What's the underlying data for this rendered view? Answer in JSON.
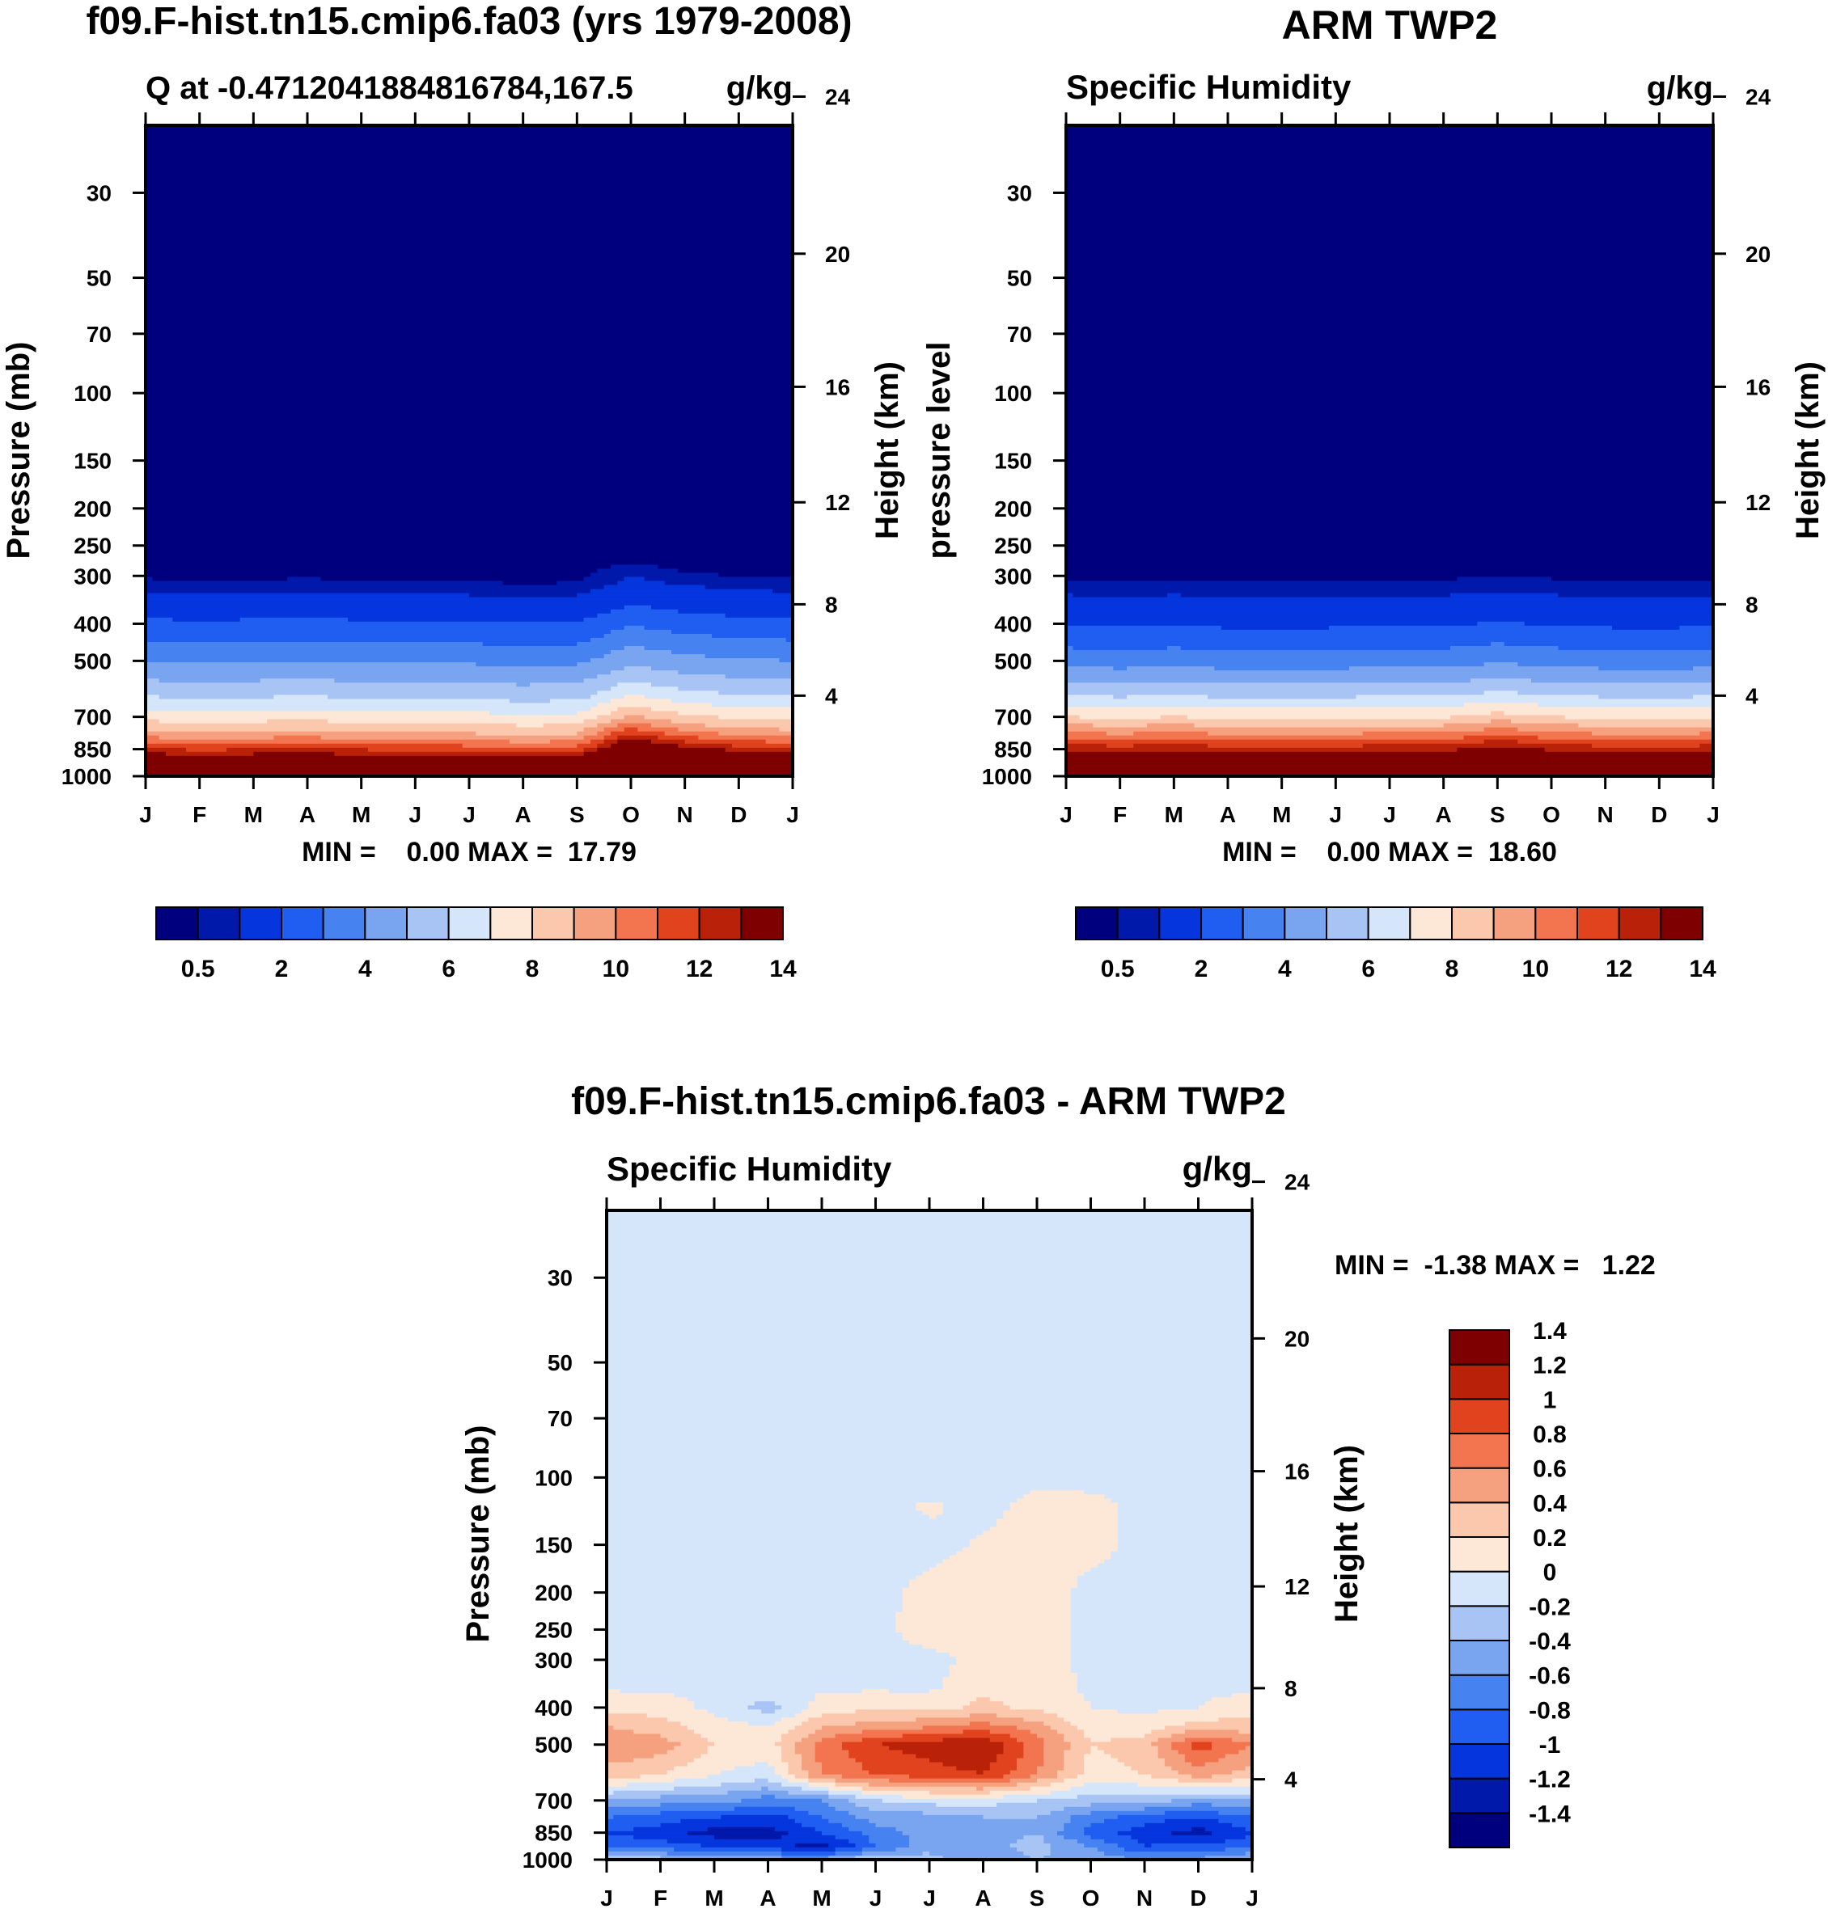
{
  "chart_data": [
    {
      "id": "model",
      "type": "heatmap",
      "title": "f09.F-hist.tn15.cmip6.fa03 (yrs 1979-2008)",
      "subtitle_left": "Q at -0.4712041884816784,167.5",
      "subtitle_right": "g/kg",
      "ylabel": "Pressure (mb)",
      "y2label": "Height (km)",
      "x_ticks": [
        "J",
        "F",
        "M",
        "A",
        "M",
        "J",
        "J",
        "A",
        "S",
        "O",
        "N",
        "D",
        "J"
      ],
      "y_ticks": [
        30,
        50,
        70,
        100,
        150,
        200,
        250,
        300,
        400,
        500,
        700,
        850,
        1000
      ],
      "y2_ticks": [
        24,
        20,
        16,
        12,
        8,
        4
      ],
      "ylim": [
        20,
        1000
      ],
      "minmax_label": "MIN =    0.00 MAX =  17.79",
      "min": 0.0,
      "max": 17.79,
      "profile_q": [
        [
          1000,
          17.5
        ],
        [
          925,
          15.2
        ],
        [
          850,
          12.2
        ],
        [
          775,
          9.4
        ],
        [
          700,
          7.6
        ],
        [
          600,
          5.6
        ],
        [
          500,
          4.0
        ],
        [
          400,
          2.2
        ],
        [
          300,
          0.4
        ],
        [
          250,
          0.15
        ],
        [
          100,
          0.0
        ],
        [
          20,
          0.0
        ]
      ],
      "monthly_level_shift": [
        0.0,
        0.06,
        0.02,
        0.0,
        0.04,
        0.05,
        0.08,
        0.12,
        0.1,
        -0.35,
        -0.15,
        -0.05,
        0.0
      ],
      "colorbar": {
        "colors": [
          "#00007f",
          "#0019aa",
          "#0535dd",
          "#1f5ef0",
          "#4682f0",
          "#78a4f0",
          "#a8c4f4",
          "#d6e6fa",
          "#fde8d8",
          "#fbc8ad",
          "#f5a07e",
          "#f27550",
          "#e0431e",
          "#b92208",
          "#7f0000"
        ],
        "levels": [
          0.5,
          1,
          2,
          3,
          4,
          5,
          6,
          7,
          8,
          9,
          10,
          11,
          12,
          13,
          14
        ],
        "labels": [
          "0.5",
          "2",
          "4",
          "6",
          "8",
          "10",
          "12",
          "14"
        ]
      }
    },
    {
      "id": "obs",
      "type": "heatmap",
      "title": "ARM TWP2",
      "subtitle_left": "Specific Humidity",
      "subtitle_right": "g/kg",
      "ylabel": "pressure level",
      "y2label": "Height (km)",
      "x_ticks": [
        "J",
        "F",
        "M",
        "A",
        "M",
        "J",
        "J",
        "A",
        "S",
        "O",
        "N",
        "D",
        "J"
      ],
      "y_ticks": [
        30,
        50,
        70,
        100,
        150,
        200,
        250,
        300,
        400,
        500,
        700,
        850,
        1000
      ],
      "y2_ticks": [
        24,
        20,
        16,
        12,
        8,
        4
      ],
      "ylim": [
        20,
        1000
      ],
      "minmax_label": "MIN =    0.00 MAX =  18.60",
      "min": 0.0,
      "max": 18.6,
      "profile_q": [
        [
          1000,
          18.2
        ],
        [
          925,
          15.6
        ],
        [
          850,
          12.8
        ],
        [
          775,
          10.2
        ],
        [
          700,
          8.0
        ],
        [
          600,
          5.6
        ],
        [
          500,
          3.6
        ],
        [
          400,
          1.9
        ],
        [
          300,
          0.4
        ],
        [
          250,
          0.15
        ],
        [
          100,
          0.0
        ],
        [
          20,
          0.0
        ]
      ],
      "monthly_level_shift": [
        0.0,
        0.04,
        0.0,
        0.05,
        0.06,
        0.04,
        0.02,
        0.02,
        -0.1,
        0.0,
        0.04,
        0.06,
        0.02
      ],
      "colorbar": {
        "colors": [
          "#00007f",
          "#0019aa",
          "#0535dd",
          "#1f5ef0",
          "#4682f0",
          "#78a4f0",
          "#a8c4f4",
          "#d6e6fa",
          "#fde8d8",
          "#fbc8ad",
          "#f5a07e",
          "#f27550",
          "#e0431e",
          "#b92208",
          "#7f0000"
        ],
        "levels": [
          0.5,
          1,
          2,
          3,
          4,
          5,
          6,
          7,
          8,
          9,
          10,
          11,
          12,
          13,
          14
        ],
        "labels": [
          "0.5",
          "2",
          "4",
          "6",
          "8",
          "10",
          "12",
          "14"
        ]
      }
    },
    {
      "id": "diff",
      "type": "heatmap",
      "title": "f09.F-hist.tn15.cmip6.fa03 - ARM TWP2",
      "subtitle_left": "Specific Humidity",
      "subtitle_right": "g/kg",
      "ylabel": "Pressure (mb)",
      "y2label": "Height (km)",
      "x_ticks": [
        "J",
        "F",
        "M",
        "A",
        "M",
        "J",
        "J",
        "A",
        "S",
        "O",
        "N",
        "D",
        "J"
      ],
      "y_ticks": [
        30,
        50,
        70,
        100,
        150,
        200,
        250,
        300,
        400,
        500,
        700,
        850,
        1000
      ],
      "y2_ticks": [
        24,
        20,
        16,
        12,
        8,
        4
      ],
      "ylim": [
        20,
        1000
      ],
      "minmax_label": "MIN =  -1.38 MAX =   1.22",
      "min": -1.38,
      "max": 1.22,
      "levels_p": [
        1000,
        925,
        850,
        775,
        700,
        600,
        500,
        450,
        400,
        350,
        300,
        250,
        200,
        150,
        120,
        100,
        20
      ],
      "grid_values": [
        [
          -0.3,
          -0.3,
          -0.4,
          -0.5,
          -0.5,
          -0.2,
          -0.3,
          -0.6,
          -0.4,
          -0.5,
          -0.6,
          -0.6,
          -0.3
        ],
        [
          -0.9,
          -0.9,
          -1.0,
          -1.1,
          -1.3,
          -0.8,
          -0.5,
          -0.5,
          -0.3,
          -0.6,
          -1.0,
          -0.9,
          -0.9
        ],
        [
          -1.0,
          -1.1,
          -1.3,
          -1.3,
          -1.0,
          -0.7,
          -0.5,
          -0.5,
          -0.4,
          -0.9,
          -1.1,
          -1.3,
          -1.0
        ],
        [
          -0.8,
          -0.9,
          -1.0,
          -1.1,
          -0.8,
          -0.5,
          -0.5,
          -0.4,
          -0.4,
          -0.7,
          -0.9,
          -1.0,
          -0.8
        ],
        [
          -0.4,
          -0.5,
          -0.5,
          -0.7,
          -0.6,
          -0.2,
          -0.1,
          -0.1,
          -0.2,
          -0.3,
          -0.3,
          -0.5,
          -0.4
        ],
        [
          0.3,
          0.2,
          0.0,
          -0.1,
          0.6,
          0.8,
          0.9,
          1.0,
          0.6,
          0.1,
          0.2,
          0.5,
          0.3
        ],
        [
          0.6,
          0.5,
          0.2,
          0.1,
          0.7,
          1.0,
          1.1,
          1.22,
          0.7,
          0.2,
          0.3,
          0.9,
          0.6
        ],
        [
          0.4,
          0.3,
          0.1,
          0.0,
          0.4,
          0.5,
          0.6,
          0.7,
          0.5,
          0.1,
          0.1,
          0.3,
          0.3
        ],
        [
          0.15,
          0.1,
          -0.05,
          -0.3,
          0.1,
          0.15,
          0.1,
          0.25,
          0.15,
          0.0,
          -0.05,
          0.0,
          0.1
        ],
        [
          -0.05,
          -0.05,
          -0.05,
          -0.05,
          -0.05,
          -0.05,
          -0.05,
          0.15,
          0.12,
          -0.05,
          -0.05,
          -0.05,
          -0.05
        ],
        [
          -0.05,
          -0.05,
          -0.05,
          -0.05,
          -0.05,
          -0.05,
          -0.05,
          0.05,
          0.1,
          -0.05,
          -0.05,
          -0.05,
          -0.05
        ],
        [
          -0.05,
          -0.05,
          -0.05,
          -0.05,
          -0.05,
          -0.05,
          0.08,
          0.1,
          0.1,
          -0.05,
          -0.05,
          -0.05,
          -0.05
        ],
        [
          -0.05,
          -0.05,
          -0.05,
          -0.05,
          -0.05,
          -0.05,
          0.05,
          0.08,
          0.08,
          -0.05,
          -0.05,
          -0.05,
          -0.05
        ],
        [
          -0.05,
          -0.05,
          -0.05,
          -0.05,
          -0.05,
          -0.05,
          -0.05,
          0.02,
          0.08,
          0.05,
          -0.05,
          -0.05,
          -0.05
        ],
        [
          -0.05,
          -0.05,
          -0.05,
          -0.05,
          -0.05,
          -0.05,
          0.02,
          -0.05,
          0.06,
          0.05,
          -0.05,
          -0.05,
          -0.05
        ],
        [
          -0.05,
          -0.05,
          -0.05,
          -0.05,
          -0.05,
          -0.05,
          -0.05,
          -0.05,
          -0.05,
          -0.05,
          -0.05,
          -0.05,
          -0.05
        ],
        [
          -0.05,
          -0.05,
          -0.05,
          -0.05,
          -0.05,
          -0.05,
          -0.05,
          -0.05,
          -0.05,
          -0.05,
          -0.05,
          -0.05,
          -0.05
        ]
      ],
      "colorbar": {
        "colors": [
          "#00007f",
          "#0019aa",
          "#0535dd",
          "#1f5ef0",
          "#4682f0",
          "#78a4f0",
          "#a8c4f4",
          "#d6e6fa",
          "#fde8d8",
          "#fbc8ad",
          "#f5a07e",
          "#f27550",
          "#e0431e",
          "#b92208",
          "#7f0000"
        ],
        "levels": [
          -1.4,
          -1.2,
          -1,
          -0.8,
          -0.6,
          -0.4,
          -0.2,
          0,
          0.2,
          0.4,
          0.6,
          0.8,
          1,
          1.2,
          1.4
        ],
        "labels": [
          "-1.4",
          "-1.2",
          "-1",
          "-0.8",
          "-0.6",
          "-0.4",
          "-0.2",
          "0",
          "0.2",
          "0.4",
          "0.6",
          "0.8",
          "1",
          "1.2",
          "1.4"
        ]
      }
    }
  ]
}
